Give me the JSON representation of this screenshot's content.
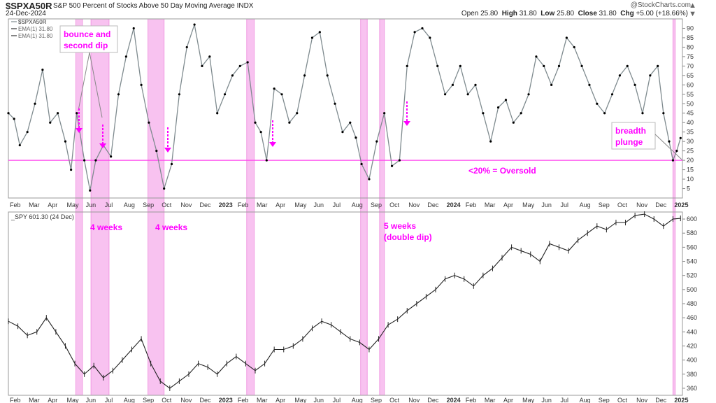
{
  "header": {
    "symbol": "$SPXA50R",
    "description": "S&P 500 Percent of Stocks Above 50 Day Moving Average",
    "exchange": "INDX",
    "date": "24-Dec-2024",
    "credit": "@StockCharts.com",
    "open_label": "Open",
    "open": "25.80",
    "high_label": "High",
    "high": "31.80",
    "low_label": "Low",
    "low": "25.80",
    "close_label": "Close",
    "close": "31.80",
    "chg_label": "Chg",
    "chg": "+5.00 (+18.66%)"
  },
  "controls": {
    "up_arrow": "▲",
    "down_arrow": "▼"
  },
  "colors": {
    "line": "#7f8b8f",
    "marker": "#000000",
    "highlight_fill": "#f7b8ee",
    "highlight_edge": "#ee88dd",
    "annotation": "#ff00ff",
    "oversold_line": "#ff44ee",
    "spy_bars": "#222222",
    "grid": "#e6e6e6"
  },
  "annotations": {
    "bounce": [
      "bounce and",
      "second dip"
    ],
    "breadth": [
      "breadth",
      "plunge"
    ],
    "oversold": "<20% = Oversold",
    "weeks_a": "4 weeks",
    "weeks_b": "4 weeks",
    "weeks_c": [
      "5 weeks",
      "(double dip)"
    ]
  },
  "chart_data": [
    {
      "type": "line",
      "panel": "top",
      "legend": [
        "$SPXA50R",
        "EMA(1) 31.80",
        "EMA(1) 31.80"
      ],
      "legend_placement": "top-left",
      "x_tick_labels": [
        "Feb",
        "Mar",
        "Apr",
        "May",
        "Jun",
        "Jul",
        "Aug",
        "Sep",
        "Oct",
        "Nov",
        "Dec",
        "2023",
        "Feb",
        "Mar",
        "Apr",
        "May",
        "Jun",
        "Jul",
        "Aug",
        "Sep",
        "Oct",
        "Nov",
        "Dec",
        "2024",
        "Feb",
        "Mar",
        "Apr",
        "May",
        "Jun",
        "Jul",
        "Aug",
        "Sep",
        "Oct",
        "Nov",
        "Dec",
        "2025"
      ],
      "y_tick_labels": [
        "5",
        "10",
        "15",
        "20",
        "25",
        "30",
        "35",
        "40",
        "45",
        "50",
        "55",
        "60",
        "65",
        "70",
        "75",
        "80",
        "85",
        "90"
      ],
      "ylim": [
        0,
        95
      ],
      "grid": false,
      "reference_line": 20,
      "series": [
        {
          "name": "$SPXA50R",
          "x": [
            0,
            0.3,
            0.6,
            1.0,
            1.4,
            1.8,
            2.2,
            2.6,
            3.0,
            3.3,
            3.6,
            4.0,
            4.3,
            4.6,
            5.0,
            5.4,
            5.8,
            6.2,
            6.6,
            7.0,
            7.4,
            7.8,
            8.2,
            8.6,
            9.0,
            9.4,
            9.8,
            10.2,
            10.6,
            11.0,
            11.4,
            11.8,
            12.2,
            12.6,
            13.0,
            13.3,
            13.6,
            14.0,
            14.4,
            14.8,
            15.2,
            15.6,
            16.0,
            16.4,
            16.8,
            17.2,
            17.6,
            18.0,
            18.3,
            18.6,
            19.0,
            19.4,
            19.8,
            20.2,
            20.6,
            21.0,
            21.4,
            21.8,
            22.2,
            22.6,
            23.0,
            23.4,
            23.8,
            24.2,
            24.6,
            25.0,
            25.4,
            25.8,
            26.2,
            26.6,
            27.0,
            27.4,
            27.8,
            28.2,
            28.6,
            29.0,
            29.4,
            29.8,
            30.2,
            30.6,
            31.0,
            31.4,
            31.8,
            32.2,
            32.6,
            33.0,
            33.4,
            33.8,
            34.2,
            34.5,
            34.8,
            35.0,
            35.2,
            35.4
          ],
          "y": [
            45,
            42,
            28,
            35,
            50,
            68,
            40,
            45,
            30,
            15,
            45,
            20,
            4,
            20,
            28,
            22,
            55,
            75,
            90,
            60,
            40,
            25,
            5,
            18,
            55,
            80,
            92,
            70,
            75,
            45,
            55,
            65,
            70,
            72,
            40,
            35,
            20,
            58,
            55,
            40,
            45,
            65,
            85,
            88,
            65,
            50,
            35,
            40,
            32,
            18,
            10,
            30,
            45,
            17,
            20,
            70,
            88,
            90,
            85,
            70,
            55,
            60,
            70,
            55,
            60,
            45,
            30,
            48,
            52,
            40,
            45,
            55,
            75,
            70,
            60,
            70,
            85,
            80,
            70,
            60,
            50,
            45,
            55,
            65,
            70,
            60,
            45,
            65,
            70,
            45,
            30,
            20,
            25,
            31.8
          ]
        }
      ],
      "highlight_months": [
        [
          3.55,
          3.9
        ],
        [
          4.35,
          5.3
        ],
        [
          7.35,
          8.2
        ],
        [
          12.55,
          12.95
        ],
        [
          18.55,
          18.9
        ],
        [
          19.55,
          19.8
        ],
        [
          35.0,
          35.12
        ]
      ]
    },
    {
      "type": "line",
      "panel": "bottom",
      "legend": [
        "_SPY 601.30 (24 Dec)"
      ],
      "legend_placement": "top-left",
      "x_tick_labels": [
        "Feb",
        "Mar",
        "Apr",
        "May",
        "Jun",
        "Jul",
        "Aug",
        "Sep",
        "Oct",
        "Nov",
        "Dec",
        "2023",
        "Feb",
        "Mar",
        "Apr",
        "May",
        "Jun",
        "Jul",
        "Aug",
        "Sep",
        "Oct",
        "Nov",
        "Dec",
        "2024",
        "Feb",
        "Mar",
        "Apr",
        "May",
        "Jun",
        "Jul",
        "Aug",
        "Sep",
        "Oct",
        "Nov",
        "Dec",
        "2025"
      ],
      "y_tick_labels": [
        "360",
        "380",
        "400",
        "420",
        "440",
        "460",
        "480",
        "500",
        "520",
        "540",
        "560",
        "580",
        "600"
      ],
      "ylim": [
        350,
        610
      ],
      "grid": false,
      "series": [
        {
          "name": "_SPY",
          "x": [
            0,
            0.5,
            1.0,
            1.5,
            2.0,
            2.5,
            3.0,
            3.5,
            4.0,
            4.5,
            5.0,
            5.5,
            6.0,
            6.5,
            7.0,
            7.5,
            8.0,
            8.5,
            9.0,
            9.5,
            10.0,
            10.5,
            11.0,
            11.5,
            12.0,
            12.5,
            13.0,
            13.5,
            14.0,
            14.5,
            15.0,
            15.5,
            16.0,
            16.5,
            17.0,
            17.5,
            18.0,
            18.5,
            19.0,
            19.5,
            20.0,
            20.5,
            21.0,
            21.5,
            22.0,
            22.5,
            23.0,
            23.5,
            24.0,
            24.5,
            25.0,
            25.5,
            26.0,
            26.5,
            27.0,
            27.5,
            28.0,
            28.5,
            29.0,
            29.5,
            30.0,
            30.5,
            31.0,
            31.5,
            32.0,
            32.5,
            33.0,
            33.5,
            34.0,
            34.5,
            35.0,
            35.4
          ],
          "y": [
            455,
            448,
            435,
            440,
            460,
            440,
            420,
            395,
            380,
            392,
            375,
            385,
            400,
            415,
            430,
            395,
            370,
            360,
            370,
            380,
            395,
            390,
            380,
            395,
            405,
            395,
            385,
            395,
            415,
            415,
            420,
            430,
            445,
            455,
            450,
            440,
            430,
            425,
            415,
            430,
            450,
            458,
            470,
            480,
            490,
            500,
            515,
            520,
            515,
            505,
            520,
            530,
            545,
            560,
            555,
            550,
            540,
            565,
            560,
            555,
            570,
            580,
            590,
            585,
            595,
            595,
            605,
            607,
            600,
            590,
            600,
            601
          ]
        }
      ]
    }
  ]
}
